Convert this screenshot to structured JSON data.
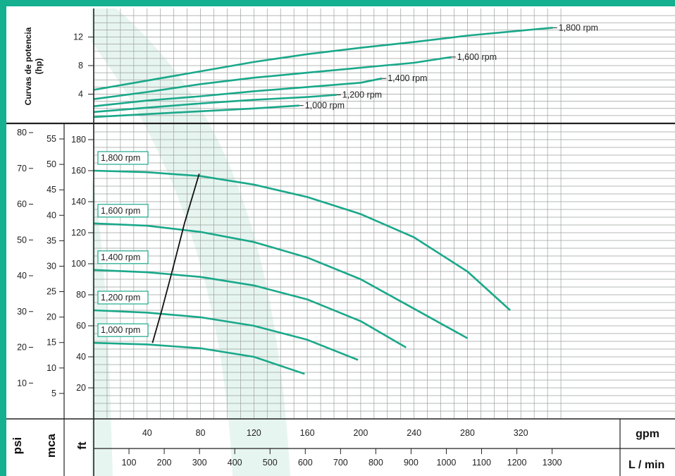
{
  "chart_data": [
    {
      "type": "line",
      "title": "Curvas de potencia (hp)",
      "ylabel_lines": [
        "Curvas de potencia",
        "(hp)"
      ],
      "x_unit": "gpm",
      "xlim": [
        0,
        360
      ],
      "ylim": [
        0,
        16
      ],
      "y_ticks": [
        4,
        8,
        12
      ],
      "series": [
        {
          "name": "1,800 rpm",
          "x": [
            0,
            40,
            80,
            120,
            160,
            200,
            240,
            280,
            320,
            344
          ],
          "y": [
            4.6,
            5.9,
            7.2,
            8.5,
            9.6,
            10.5,
            11.3,
            12.2,
            12.9,
            13.3
          ]
        },
        {
          "name": "1,600 rpm",
          "x": [
            0,
            40,
            80,
            120,
            160,
            200,
            240,
            268
          ],
          "y": [
            3.3,
            4.3,
            5.4,
            6.3,
            7.0,
            7.7,
            8.4,
            9.2
          ]
        },
        {
          "name": "1,400 rpm",
          "x": [
            0,
            40,
            80,
            120,
            160,
            200,
            216
          ],
          "y": [
            2.3,
            3.1,
            3.7,
            4.4,
            5.0,
            5.6,
            6.2
          ]
        },
        {
          "name": "1,200 rpm",
          "x": [
            0,
            40,
            80,
            120,
            160,
            182
          ],
          "y": [
            1.5,
            2.1,
            2.7,
            3.2,
            3.6,
            3.9
          ]
        },
        {
          "name": "1,000 rpm",
          "x": [
            0,
            40,
            80,
            120,
            154
          ],
          "y": [
            0.8,
            1.2,
            1.6,
            2.0,
            2.4
          ]
        }
      ]
    },
    {
      "type": "line",
      "x_unit": "gpm",
      "x2_unit": "L / min",
      "y_unit": "ft",
      "y2_unit": "mca",
      "y3_unit": "psi",
      "xlim": [
        0,
        360
      ],
      "ylim": [
        0,
        190
      ],
      "x_ticks": [
        40,
        80,
        120,
        160,
        200,
        240,
        280,
        320
      ],
      "x2_ticks": [
        100,
        200,
        300,
        400,
        500,
        600,
        700,
        800,
        900,
        1000,
        1100,
        1200,
        1300
      ],
      "ft_ticks": [
        20,
        40,
        60,
        80,
        100,
        120,
        140,
        160,
        180
      ],
      "mca_ticks": [
        5,
        10,
        15,
        20,
        25,
        30,
        35,
        40,
        45,
        50,
        55
      ],
      "psi_ticks": [
        10,
        20,
        30,
        40,
        50,
        60,
        70,
        80
      ],
      "series": [
        {
          "name": "1,800 rpm",
          "x": [
            0,
            40,
            80,
            120,
            160,
            200,
            240,
            280,
            312
          ],
          "y": [
            160,
            159,
            156.5,
            151,
            143,
            132,
            117,
            95,
            70
          ]
        },
        {
          "name": "1,600 rpm",
          "x": [
            0,
            40,
            80,
            120,
            160,
            200,
            240,
            280
          ],
          "y": [
            126,
            124.5,
            120.5,
            114,
            104,
            90,
            71,
            52
          ]
        },
        {
          "name": "1,400 rpm",
          "x": [
            0,
            40,
            80,
            120,
            160,
            200,
            234
          ],
          "y": [
            96,
            94.5,
            91.5,
            86,
            77,
            63,
            46
          ]
        },
        {
          "name": "1,200 rpm",
          "x": [
            0,
            40,
            80,
            120,
            160,
            198
          ],
          "y": [
            70,
            68.5,
            65.5,
            60,
            51,
            38
          ]
        },
        {
          "name": "1,000 rpm",
          "x": [
            0,
            40,
            80,
            120,
            158
          ],
          "y": [
            49,
            48,
            45.5,
            40,
            29
          ]
        }
      ],
      "bep_line": {
        "x": [
          44,
          51,
          59,
          68,
          79
        ],
        "y": [
          49,
          70,
          96,
          126,
          158
        ]
      }
    }
  ]
}
